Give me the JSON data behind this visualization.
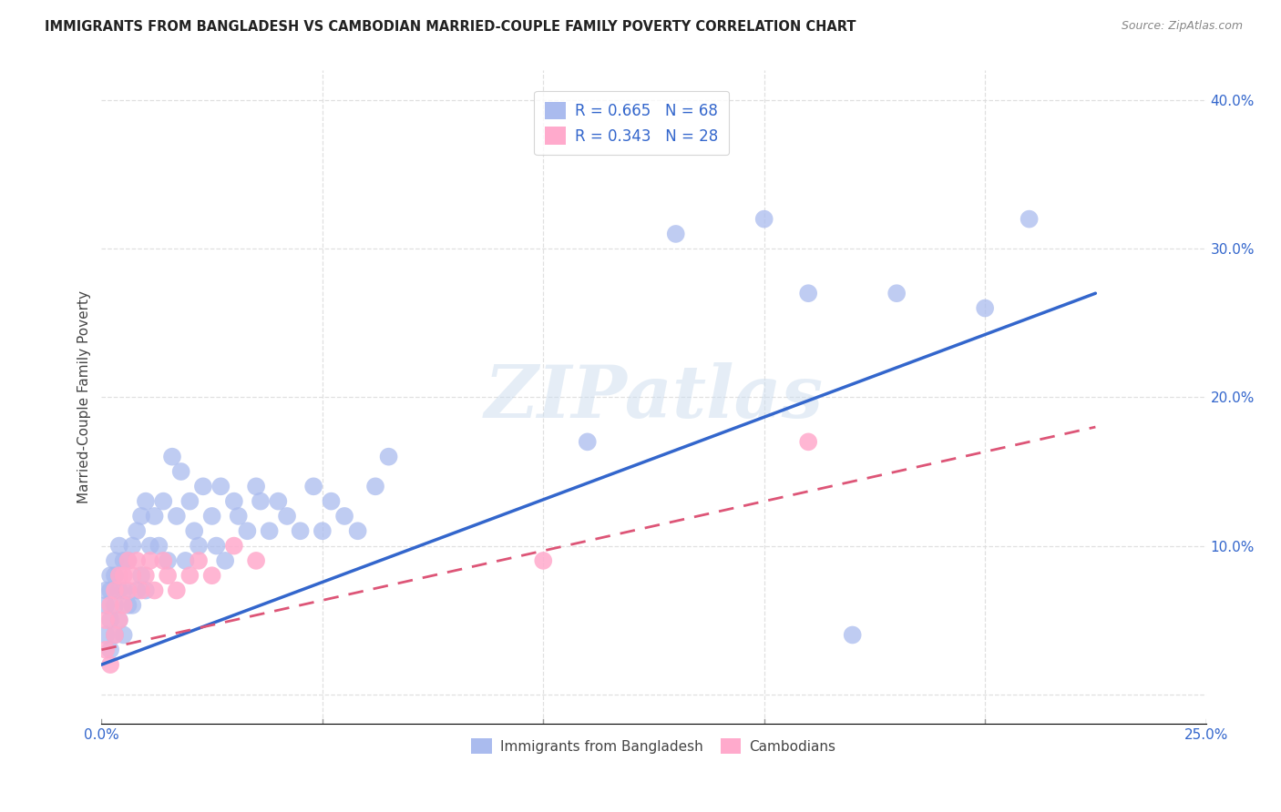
{
  "title": "IMMIGRANTS FROM BANGLADESH VS CAMBODIAN MARRIED-COUPLE FAMILY POVERTY CORRELATION CHART",
  "source": "Source: ZipAtlas.com",
  "ylabel": "Married-Couple Family Poverty",
  "xlim": [
    0.0,
    0.25
  ],
  "ylim": [
    -0.02,
    0.42
  ],
  "xticks": [
    0.0,
    0.05,
    0.1,
    0.15,
    0.2,
    0.25
  ],
  "yticks": [
    0.0,
    0.1,
    0.2,
    0.3,
    0.4
  ],
  "xticklabels": [
    "0.0%",
    "",
    "",
    "",
    "",
    "25.0%"
  ],
  "yticklabels": [
    "",
    "10.0%",
    "20.0%",
    "30.0%",
    "40.0%"
  ],
  "legend_blue_label": "R = 0.665   N = 68",
  "legend_pink_label": "R = 0.343   N = 28",
  "legend_bottom_blue": "Immigrants from Bangladesh",
  "legend_bottom_pink": "Cambodians",
  "watermark": "ZIPatlas",
  "blue_scatter_x": [
    0.001,
    0.001,
    0.001,
    0.002,
    0.002,
    0.002,
    0.002,
    0.003,
    0.003,
    0.003,
    0.003,
    0.004,
    0.004,
    0.004,
    0.005,
    0.005,
    0.005,
    0.006,
    0.006,
    0.007,
    0.007,
    0.008,
    0.008,
    0.009,
    0.009,
    0.01,
    0.01,
    0.011,
    0.012,
    0.013,
    0.014,
    0.015,
    0.016,
    0.017,
    0.018,
    0.019,
    0.02,
    0.021,
    0.022,
    0.023,
    0.025,
    0.026,
    0.027,
    0.028,
    0.03,
    0.031,
    0.033,
    0.035,
    0.036,
    0.038,
    0.04,
    0.042,
    0.045,
    0.048,
    0.05,
    0.052,
    0.055,
    0.058,
    0.062,
    0.065,
    0.11,
    0.13,
    0.15,
    0.16,
    0.17,
    0.18,
    0.2,
    0.21
  ],
  "blue_scatter_y": [
    0.04,
    0.06,
    0.07,
    0.03,
    0.05,
    0.07,
    0.08,
    0.04,
    0.06,
    0.08,
    0.09,
    0.05,
    0.07,
    0.1,
    0.04,
    0.07,
    0.09,
    0.06,
    0.09,
    0.06,
    0.1,
    0.07,
    0.11,
    0.08,
    0.12,
    0.07,
    0.13,
    0.1,
    0.12,
    0.1,
    0.13,
    0.09,
    0.16,
    0.12,
    0.15,
    0.09,
    0.13,
    0.11,
    0.1,
    0.14,
    0.12,
    0.1,
    0.14,
    0.09,
    0.13,
    0.12,
    0.11,
    0.14,
    0.13,
    0.11,
    0.13,
    0.12,
    0.11,
    0.14,
    0.11,
    0.13,
    0.12,
    0.11,
    0.14,
    0.16,
    0.17,
    0.31,
    0.32,
    0.27,
    0.04,
    0.27,
    0.26,
    0.32
  ],
  "pink_scatter_x": [
    0.001,
    0.001,
    0.002,
    0.002,
    0.003,
    0.003,
    0.004,
    0.004,
    0.005,
    0.005,
    0.006,
    0.006,
    0.007,
    0.008,
    0.009,
    0.01,
    0.011,
    0.012,
    0.014,
    0.015,
    0.017,
    0.02,
    0.022,
    0.025,
    0.03,
    0.035,
    0.1,
    0.16
  ],
  "pink_scatter_y": [
    0.03,
    0.05,
    0.02,
    0.06,
    0.04,
    0.07,
    0.05,
    0.08,
    0.06,
    0.08,
    0.07,
    0.09,
    0.08,
    0.09,
    0.07,
    0.08,
    0.09,
    0.07,
    0.09,
    0.08,
    0.07,
    0.08,
    0.09,
    0.08,
    0.1,
    0.09,
    0.09,
    0.17
  ],
  "blue_line_x": [
    0.0,
    0.225
  ],
  "blue_line_y": [
    0.02,
    0.27
  ],
  "pink_line_x": [
    0.0,
    0.225
  ],
  "pink_line_y": [
    0.03,
    0.18
  ],
  "blue_line_color": "#3366CC",
  "pink_line_color": "#DD5577",
  "blue_scatter_color": "#AABBEE",
  "pink_scatter_color": "#FFAACC",
  "grid_color": "#DDDDDD",
  "title_color": "#222222",
  "axis_label_color": "#444444",
  "tick_label_color": "#3366CC",
  "source_color": "#888888"
}
